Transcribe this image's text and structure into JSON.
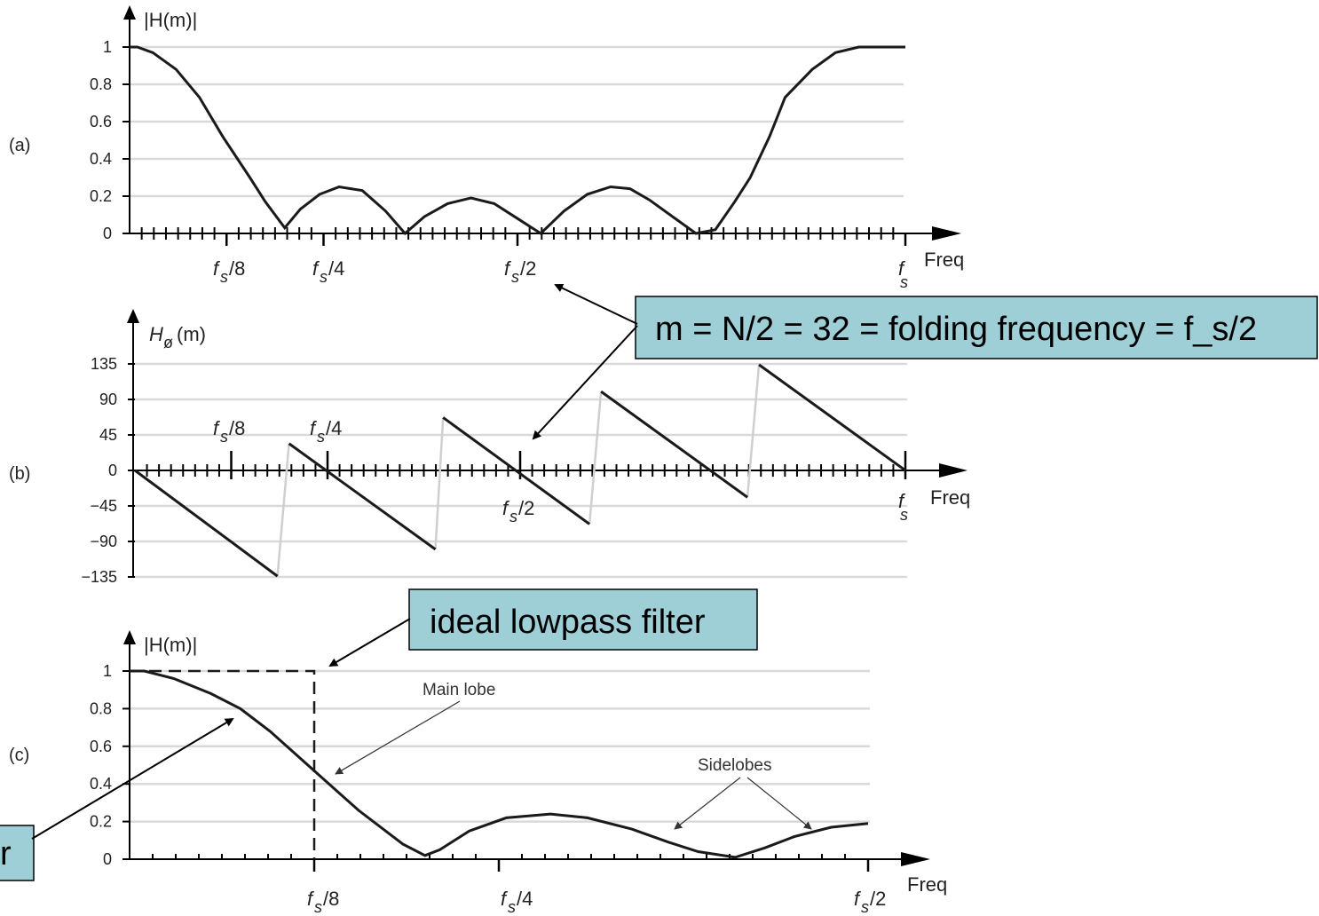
{
  "chart_data": [
    {
      "panel_label": "(a)",
      "type": "line",
      "ylabel": "|H(m)|",
      "xlabel": "Freq",
      "yticks": [
        "0",
        "0.2",
        "0.4",
        "0.6",
        "0.8",
        "1"
      ],
      "xticks": [
        "f_s/8",
        "f_s/4",
        "f_s/2",
        "f_s"
      ],
      "ylim": [
        0,
        1
      ],
      "xlim": [
        0,
        1
      ],
      "grid": true,
      "series": [
        {
          "x": [
            0,
            0.01,
            0.03,
            0.06,
            0.09,
            0.12,
            0.155,
            0.175,
            0.2,
            0.22,
            0.245,
            0.27,
            0.3,
            0.33,
            0.355,
            0.38,
            0.41,
            0.44,
            0.47,
            0.5,
            0.53,
            0.56,
            0.59,
            0.62,
            0.645,
            0.67,
            0.7,
            0.73,
            0.755,
            0.78,
            0.8,
            0.825,
            0.845,
            0.88,
            0.91,
            0.94,
            0.97,
            0.99,
            1.0
          ],
          "y": [
            1.0,
            1.0,
            0.97,
            0.88,
            0.73,
            0.52,
            0.3,
            0.17,
            0.03,
            0.13,
            0.21,
            0.25,
            0.23,
            0.12,
            0.0,
            0.09,
            0.16,
            0.19,
            0.16,
            0.08,
            0.0,
            0.12,
            0.21,
            0.25,
            0.24,
            0.18,
            0.09,
            0.0,
            0.02,
            0.17,
            0.3,
            0.52,
            0.73,
            0.88,
            0.97,
            1.0,
            1.0,
            1.0,
            1.0
          ]
        }
      ]
    },
    {
      "panel_label": "(b)",
      "type": "line",
      "ylabel": "H_ø(m)",
      "xlabel": "Freq",
      "yticks": [
        "135",
        "90",
        "45",
        "0",
        "−45",
        "−90",
        "−135"
      ],
      "xticks": [
        "f_s/8",
        "f_s/4",
        "f_s/2",
        "f_s"
      ],
      "ylim": [
        -135,
        135
      ],
      "xlim": [
        0,
        1
      ],
      "grid": true,
      "segments": [
        {
          "x": [
            0.0,
            0.185
          ],
          "y": [
            0,
            -134
          ]
        },
        {
          "x": [
            0.2,
            0.39
          ],
          "y": [
            34,
            -100
          ]
        },
        {
          "x": [
            0.4,
            0.59
          ],
          "y": [
            67,
            -68
          ]
        },
        {
          "x": [
            0.605,
            0.795
          ],
          "y": [
            100,
            -34
          ]
        },
        {
          "x": [
            0.81,
            1.0
          ],
          "y": [
            134,
            0
          ]
        }
      ],
      "wraps": [
        {
          "x": [
            0.185,
            0.2
          ],
          "y": [
            -134,
            34
          ]
        },
        {
          "x": [
            0.39,
            0.4
          ],
          "y": [
            -100,
            67
          ]
        },
        {
          "x": [
            0.59,
            0.605
          ],
          "y": [
            -68,
            100
          ]
        },
        {
          "x": [
            0.795,
            0.81
          ],
          "y": [
            -34,
            134
          ]
        }
      ]
    },
    {
      "panel_label": "(c)",
      "type": "line",
      "ylabel": "|H(m)|",
      "xlabel": "Freq",
      "yticks": [
        "0",
        "0.2",
        "0.4",
        "0.6",
        "0.8",
        "1"
      ],
      "xticks": [
        "f_s/8",
        "f_s/4",
        "f_s/2"
      ],
      "ylim": [
        0,
        1
      ],
      "xlim": [
        0,
        0.5
      ],
      "grid": true,
      "series": [
        {
          "x": [
            0,
            0.01,
            0.03,
            0.055,
            0.075,
            0.095,
            0.125,
            0.155,
            0.185,
            0.2,
            0.21,
            0.23,
            0.255,
            0.285,
            0.31,
            0.34,
            0.365,
            0.385,
            0.41,
            0.43,
            0.45,
            0.475,
            0.5
          ],
          "y": [
            1.0,
            1.0,
            0.96,
            0.88,
            0.8,
            0.68,
            0.47,
            0.26,
            0.08,
            0.02,
            0.05,
            0.15,
            0.22,
            0.24,
            0.22,
            0.16,
            0.09,
            0.04,
            0.01,
            0.06,
            0.12,
            0.17,
            0.19
          ]
        }
      ],
      "ideal_filter": {
        "passband_edge": 0.125,
        "gain": 1
      },
      "annotations": [
        "Main lobe",
        "Sidelobes"
      ]
    }
  ],
  "panel_labels": [
    "(a)",
    "(b)",
    "(c)"
  ],
  "axes_text": {
    "mag_label": "|H(m)|",
    "phase_label": "H",
    "phase_sub": "ø",
    "phase_arg": "(m)",
    "freq": "Freq",
    "fs": "f",
    "fs_sub": "s",
    "fs8": "/8",
    "fs4": "/4",
    "fs2": "/2"
  },
  "annotations": {
    "main_lobe": "Main lobe",
    "sidelobes": "Sidelobes"
  },
  "callouts": {
    "folding": "m = N/2 = 32 = folding frequency = f_s/2",
    "ideal": "ideal lowpass filter",
    "partial": "r"
  },
  "colors": {
    "curve": "#1a1a1a",
    "wrap": "#cfcfcf",
    "grid": "#d9d9d9",
    "callout_fill": "#9ecfd6"
  }
}
